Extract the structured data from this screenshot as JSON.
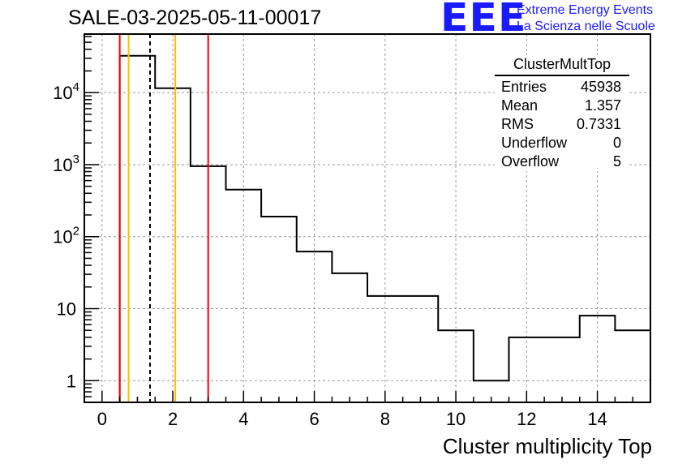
{
  "header": {
    "title": "SALE-03-2025-05-11-00017",
    "logo_text": "EEE",
    "logo_line1": "Extreme Energy Events",
    "logo_line2": "La Scienza nelle Scuole"
  },
  "stats_box": {
    "title": "ClusterMultTop",
    "rows": [
      {
        "label": "Entries",
        "value": "45938"
      },
      {
        "label": "Mean",
        "value": "1.357"
      },
      {
        "label": "RMS",
        "value": "0.7331"
      },
      {
        "label": "Underflow",
        "value": "0"
      },
      {
        "label": "Overflow",
        "value": "5"
      }
    ]
  },
  "chart_data": {
    "type": "histogram",
    "title": "SALE-03-2025-05-11-00017",
    "xlabel": "Cluster multiplicity Top",
    "ylabel": "",
    "yscale": "log",
    "xlim": [
      -0.5,
      15.5
    ],
    "ylim": [
      0.5,
      65000
    ],
    "grid": true,
    "bin_edges": [
      0.5,
      1.5,
      2.5,
      3.5,
      4.5,
      5.5,
      6.5,
      7.5,
      8.5,
      9.5,
      10.5,
      11.5,
      12.5,
      13.5,
      14.5,
      15.5
    ],
    "counts": [
      32500,
      11500,
      950,
      450,
      190,
      62,
      31,
      15,
      15,
      5,
      1,
      4,
      4,
      8,
      5
    ],
    "x_ticks": [
      0,
      2,
      4,
      6,
      8,
      10,
      12,
      14
    ],
    "y_ticks": [
      1,
      10,
      100,
      1000,
      10000
    ],
    "y_tick_labels": [
      {
        "base": "1",
        "exp": ""
      },
      {
        "base": "10",
        "exp": ""
      },
      {
        "base": "10",
        "exp": "2"
      },
      {
        "base": "10",
        "exp": "3"
      },
      {
        "base": "10",
        "exp": "4"
      }
    ],
    "vertical_lines": [
      {
        "x": 0.5,
        "color": "#ff0000",
        "style": "solid"
      },
      {
        "x": 0.75,
        "color": "#ffbf00",
        "style": "solid"
      },
      {
        "x": 1.357,
        "color": "#000000",
        "style": "dashed"
      },
      {
        "x": 2.07,
        "color": "#ffbf00",
        "style": "solid"
      },
      {
        "x": 3.0,
        "color": "#ff0000",
        "style": "solid"
      }
    ]
  }
}
